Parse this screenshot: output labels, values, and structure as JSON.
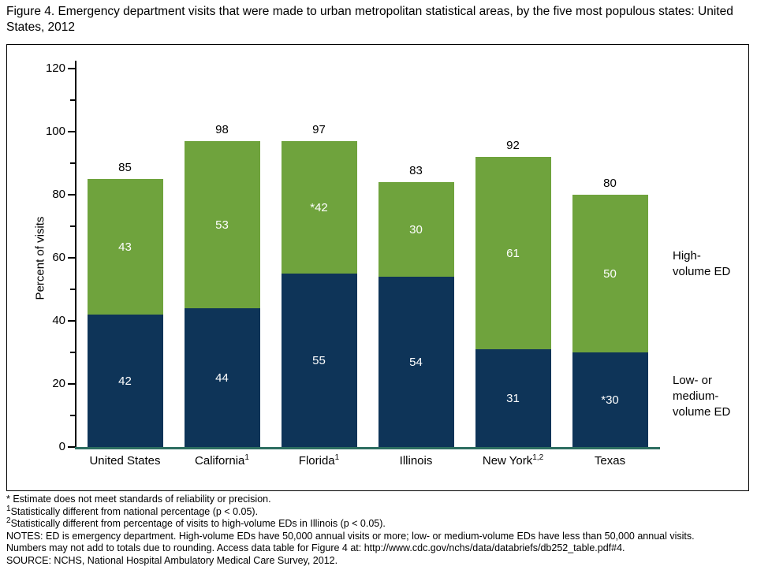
{
  "figure": {
    "title": "Figure 4. Emergency department visits that were made to urban metropolitan statistical areas, by the five most populous states: United States, 2012"
  },
  "chart_data": {
    "type": "bar",
    "stacked": true,
    "title": "Figure 4. Emergency department visits that were made to urban metropolitan statistical areas, by the five most populous states: United States, 2012",
    "xlabel": "",
    "ylabel": "Percent of visits",
    "ylim": [
      0,
      120
    ],
    "ytick_major": 20,
    "ytick_minor": 10,
    "grid": false,
    "legend_position": "right",
    "colors": {
      "axis": "#000000",
      "baseline": "#2d6e60",
      "total_label": "#000000",
      "segment_label": "#ffffff"
    },
    "categories": [
      {
        "label": "United States",
        "sup": ""
      },
      {
        "label": "California",
        "sup": "1"
      },
      {
        "label": "Florida",
        "sup": "1"
      },
      {
        "label": "Illinois",
        "sup": ""
      },
      {
        "label": "New York",
        "sup": "1,2"
      },
      {
        "label": "Texas",
        "sup": ""
      }
    ],
    "series": [
      {
        "name": "Low- or medium-volume ED",
        "color": "#0e3458",
        "values": [
          42,
          44,
          55,
          54,
          31,
          30
        ],
        "labels": [
          "42",
          "44",
          "55",
          "54",
          "31",
          "*30"
        ]
      },
      {
        "name": "High-volume ED",
        "color": "#6fa33d",
        "values": [
          43,
          53,
          42,
          30,
          61,
          50
        ],
        "labels": [
          "43",
          "53",
          "*42",
          "30",
          "61",
          "50"
        ]
      }
    ],
    "totals": [
      "85",
      "98",
      "97",
      "83",
      "92",
      "80"
    ],
    "legend": [
      {
        "name": "High-volume ED",
        "lines": [
          "High-",
          "volume ED"
        ]
      },
      {
        "name": "Low- or medium-volume ED",
        "lines": [
          "Low- or",
          "medium-",
          "volume ED"
        ]
      }
    ]
  },
  "footnotes": [
    {
      "sup": "",
      "text": "* Estimate does not meet standards of reliability or precision."
    },
    {
      "sup": "1",
      "text": "Statistically different from national percentage (p < 0.05)."
    },
    {
      "sup": "2",
      "text": "Statistically different from percentage of visits to high-volume EDs in Illinois (p < 0.05)."
    },
    {
      "sup": "",
      "text": "NOTES: ED is emergency department. High-volume EDs have 50,000 annual visits or more; low- or medium-volume EDs have less than 50,000 annual visits."
    },
    {
      "sup": "",
      "text": "Numbers may not add to totals due to rounding. Access data table for Figure 4 at: http://www.cdc.gov/nchs/data/databriefs/db252_table.pdf#4."
    },
    {
      "sup": "",
      "text": "SOURCE: NCHS, National Hospital Ambulatory Medical Care Survey, 2012."
    }
  ]
}
